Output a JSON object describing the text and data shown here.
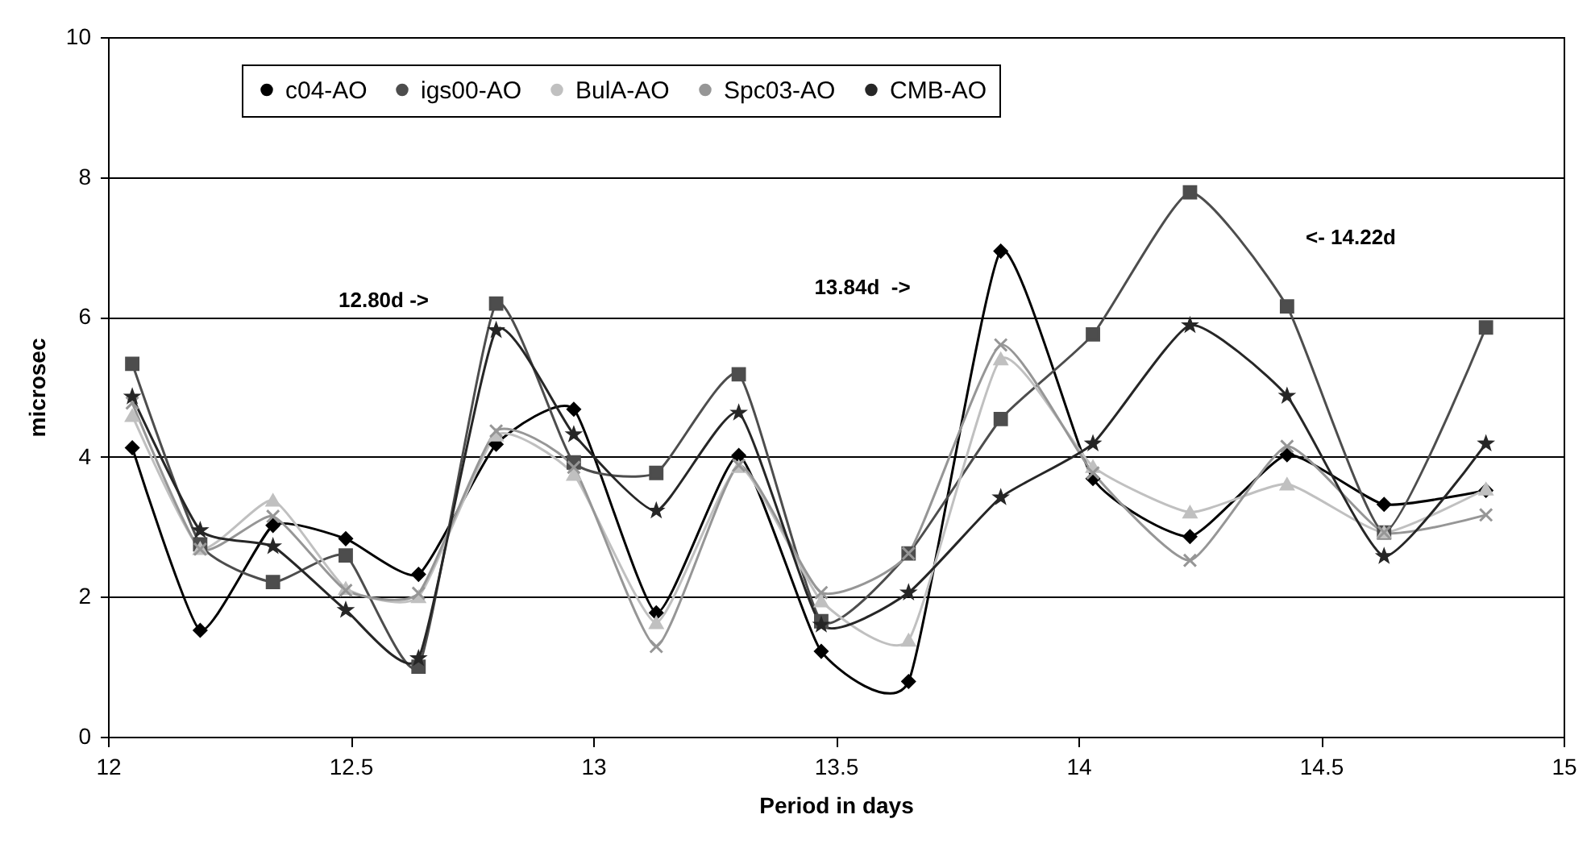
{
  "chart_data": {
    "type": "line",
    "xlabel": "Period in days",
    "ylabel": "microsec",
    "x": [
      12.05,
      12.19,
      12.34,
      12.49,
      12.64,
      12.8,
      12.96,
      13.13,
      13.3,
      13.47,
      13.65,
      13.84,
      14.03,
      14.23,
      14.43,
      14.63,
      14.84
    ],
    "series": [
      {
        "name": "c04-AO",
        "color": "#000000",
        "marker": "diamond",
        "values": [
          4.13,
          1.52,
          3.02,
          2.83,
          2.32,
          4.18,
          4.68,
          1.77,
          4.02,
          1.22,
          0.79,
          6.94,
          3.69,
          2.86,
          4.03,
          3.32,
          3.52
        ]
      },
      {
        "name": "igs00-AO",
        "color": "#4d4d4d",
        "marker": "square",
        "values": [
          5.33,
          2.75,
          2.21,
          2.59,
          1.0,
          6.19,
          3.92,
          3.77,
          5.18,
          1.65,
          2.62,
          4.54,
          5.75,
          7.78,
          6.15,
          2.92,
          5.85
        ]
      },
      {
        "name": "BulA-AO",
        "color": "#c0c0c0",
        "marker": "triangle",
        "values": [
          4.59,
          2.69,
          3.38,
          2.12,
          2.0,
          4.31,
          3.75,
          1.63,
          3.86,
          1.94,
          1.38,
          5.4,
          3.86,
          3.21,
          3.61,
          2.92,
          3.54
        ]
      },
      {
        "name": "Spc03-AO",
        "color": "#969696",
        "marker": "cross",
        "values": [
          4.77,
          2.68,
          3.15,
          2.09,
          2.05,
          4.37,
          3.85,
          1.29,
          3.88,
          2.06,
          2.62,
          5.6,
          3.77,
          2.52,
          4.15,
          2.92,
          3.17
        ]
      },
      {
        "name": "CMB-AO",
        "color": "#262626",
        "marker": "star",
        "values": [
          4.86,
          2.95,
          2.72,
          1.81,
          1.12,
          5.81,
          4.32,
          3.23,
          4.63,
          1.6,
          2.06,
          3.42,
          4.19,
          5.88,
          4.87,
          2.58,
          4.19
        ]
      }
    ],
    "xlim": [
      12,
      15
    ],
    "xticks": [
      12,
      12.5,
      13,
      13.5,
      14,
      14.5,
      15
    ],
    "ylim": [
      0,
      10
    ],
    "yticks": [
      0,
      2,
      4,
      6,
      8,
      10
    ],
    "grid": "y",
    "legend": "top left",
    "line_style": "solid",
    "annotations": [
      "12.80d ->",
      "13.84d  ->",
      "<- 14.22d"
    ]
  }
}
